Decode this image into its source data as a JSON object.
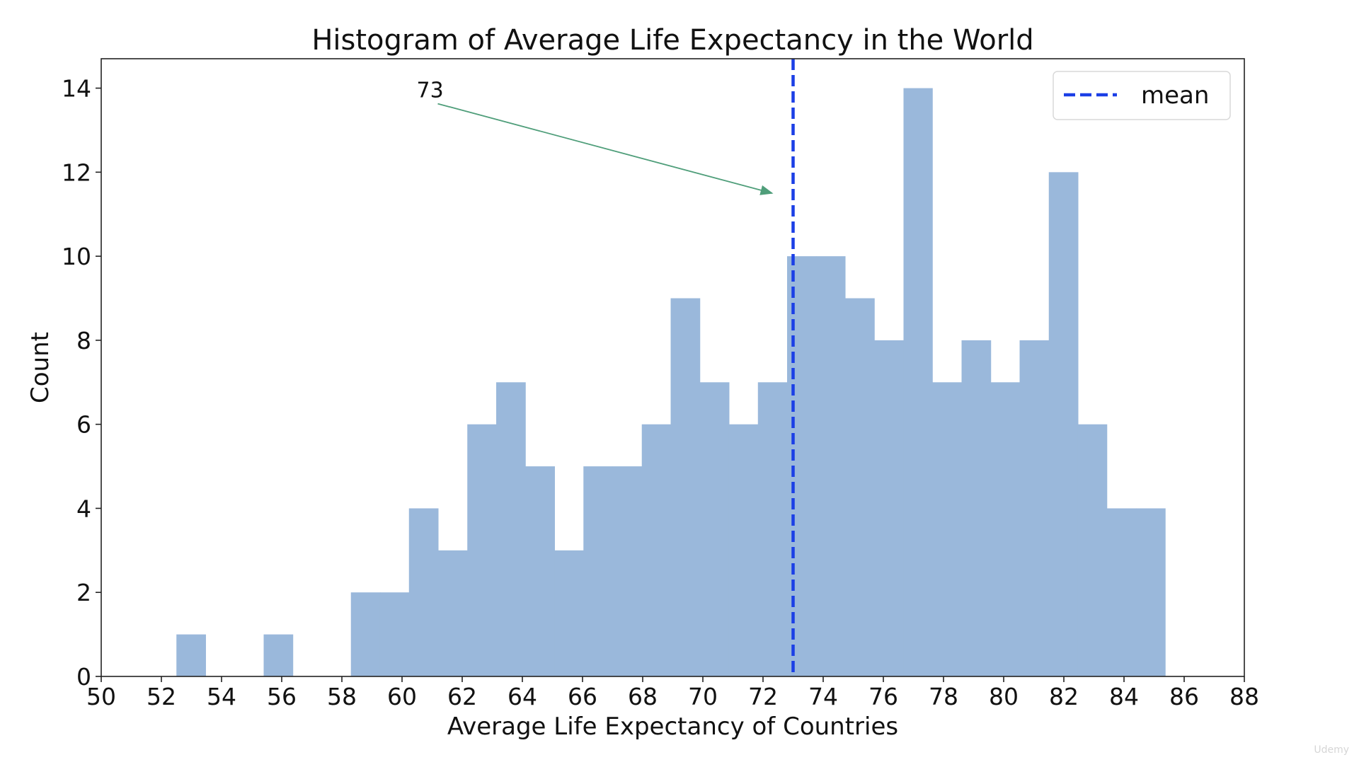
{
  "chart_data": {
    "type": "bar",
    "title": "Histogram of Average Life Expectancy in the World",
    "xlabel": "Average Life Expectancy of Countries",
    "ylabel": "Count",
    "xlim": [
      50,
      88
    ],
    "ylim": [
      0,
      14.7
    ],
    "x_ticks": [
      "50",
      "52",
      "54",
      "56",
      "58",
      "60",
      "62",
      "64",
      "66",
      "68",
      "70",
      "72",
      "74",
      "76",
      "78",
      "80",
      "82",
      "84",
      "86",
      "88"
    ],
    "y_ticks": [
      "0",
      "2",
      "4",
      "6",
      "8",
      "10",
      "12",
      "14"
    ],
    "bin_edges": [
      52.5,
      53.47,
      54.43,
      55.4,
      56.37,
      57.33,
      58.3,
      59.27,
      60.23,
      61.2,
      62.17,
      63.13,
      64.1,
      65.07,
      66.03,
      67.0,
      67.97,
      68.93,
      69.9,
      70.87,
      71.83,
      72.8,
      73.77,
      74.73,
      75.7,
      76.67,
      77.63,
      78.6,
      79.57,
      80.53,
      81.5,
      82.47,
      83.43,
      84.4,
      85.37
    ],
    "counts": [
      1,
      0,
      0,
      1,
      0,
      0,
      2,
      2,
      4,
      3,
      6,
      7,
      5,
      3,
      5,
      5,
      6,
      9,
      7,
      6,
      7,
      10,
      10,
      9,
      8,
      14,
      7,
      8,
      7,
      8,
      12,
      6,
      4,
      4
    ],
    "bar_color": "#9ab8db",
    "mean": 73,
    "mean_line_color": "#1b3fe6",
    "legend": {
      "label": "mean",
      "position": "top-right"
    },
    "annotation": {
      "text": "73",
      "x": 61,
      "y": 14,
      "arrow_to_x": 72.3,
      "arrow_to_y": 11.5,
      "arrow_color": "#4f9e7a"
    },
    "grid": false
  },
  "watermark_text": "Udemy"
}
